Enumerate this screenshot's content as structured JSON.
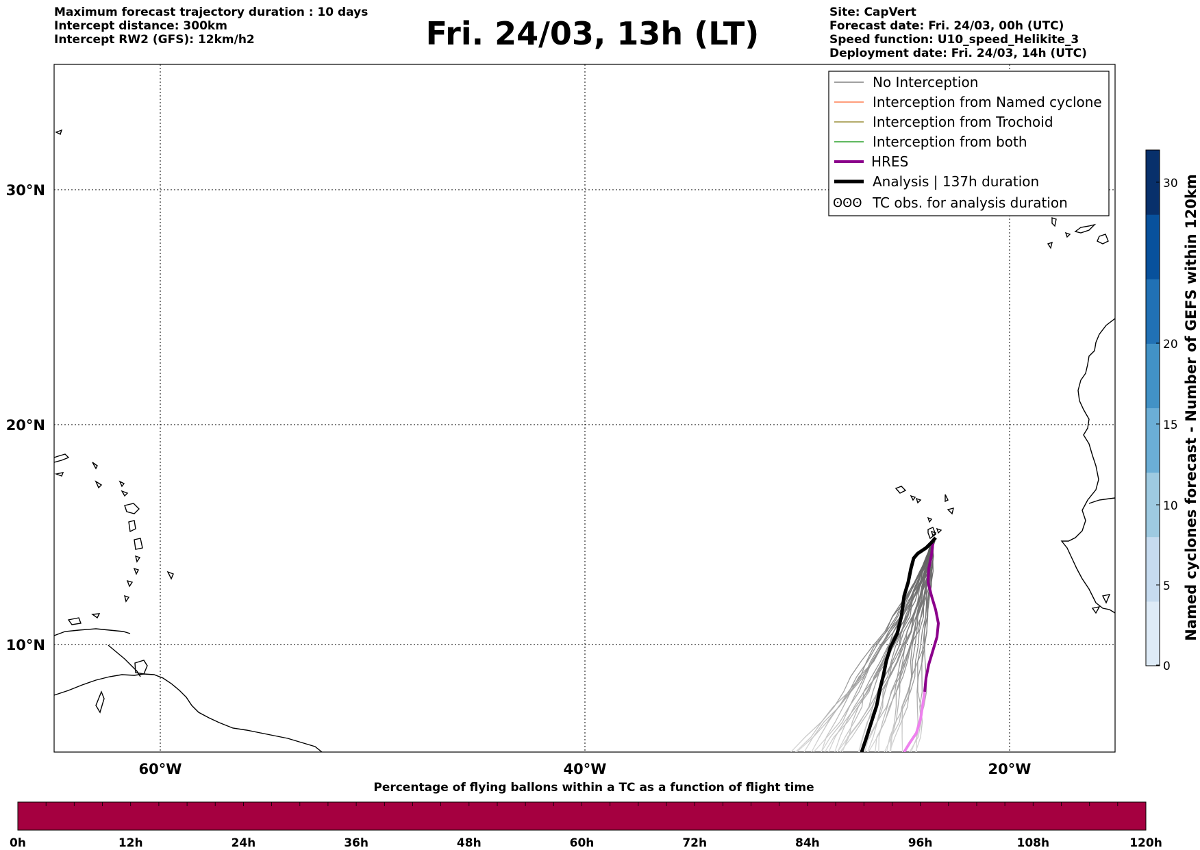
{
  "header_left": [
    "Maximum forecast trajectory duration : 10 days",
    "Intercept distance: 300km",
    "Intercept RW2 (GFS):  12km/h2"
  ],
  "title": "Fri. 24/03, 13h (LT)",
  "header_right": [
    "Site: CapVert",
    "Forecast date: Fri. 24/03, 00h (UTC)",
    "Speed function: U10_speed_Helikite_3",
    "Deployment date: Fri. 24/03, 14h (UTC)"
  ],
  "map": {
    "lon_labels": [
      "60°W",
      "40°W",
      "20°W"
    ],
    "lat_labels": [
      "30°N",
      "20°N",
      "10°N"
    ],
    "gridlines": "dotted"
  },
  "legend": {
    "placement": "top-right",
    "entries": [
      {
        "label": "No Interception",
        "color": "#808080"
      },
      {
        "label": "Interception from Named cyclone",
        "color": "#ff7f50"
      },
      {
        "label": "Interception from Trochoid",
        "color": "#9b8f3a"
      },
      {
        "label": "Interception from both",
        "color": "#2ca02c"
      },
      {
        "label": "HRES",
        "color": "#8b008b"
      },
      {
        "label": "Analysis | 137h duration",
        "color": "#000000"
      },
      {
        "label": "TC obs. for analysis duration",
        "symbol": "ʘʘʘ"
      }
    ]
  },
  "colorbar_right": {
    "label": "Named cyclones forecast - Number of GEFS within 120km",
    "ticks": [
      "0",
      "5",
      "10",
      "15",
      "20",
      "30"
    ],
    "colors": [
      "#deebf7",
      "#c6dbef",
      "#9ecae1",
      "#6baed6",
      "#4292c6",
      "#2171b5",
      "#08519c",
      "#08306b"
    ]
  },
  "colorbar_bottom": {
    "title": "Percentage of flying ballons within a TC as a function of flight time",
    "ticks": [
      "0h",
      "12h",
      "24h",
      "36h",
      "48h",
      "60h",
      "72h",
      "84h",
      "96h",
      "108h",
      "120h"
    ],
    "fill_color": "#a50040"
  }
}
